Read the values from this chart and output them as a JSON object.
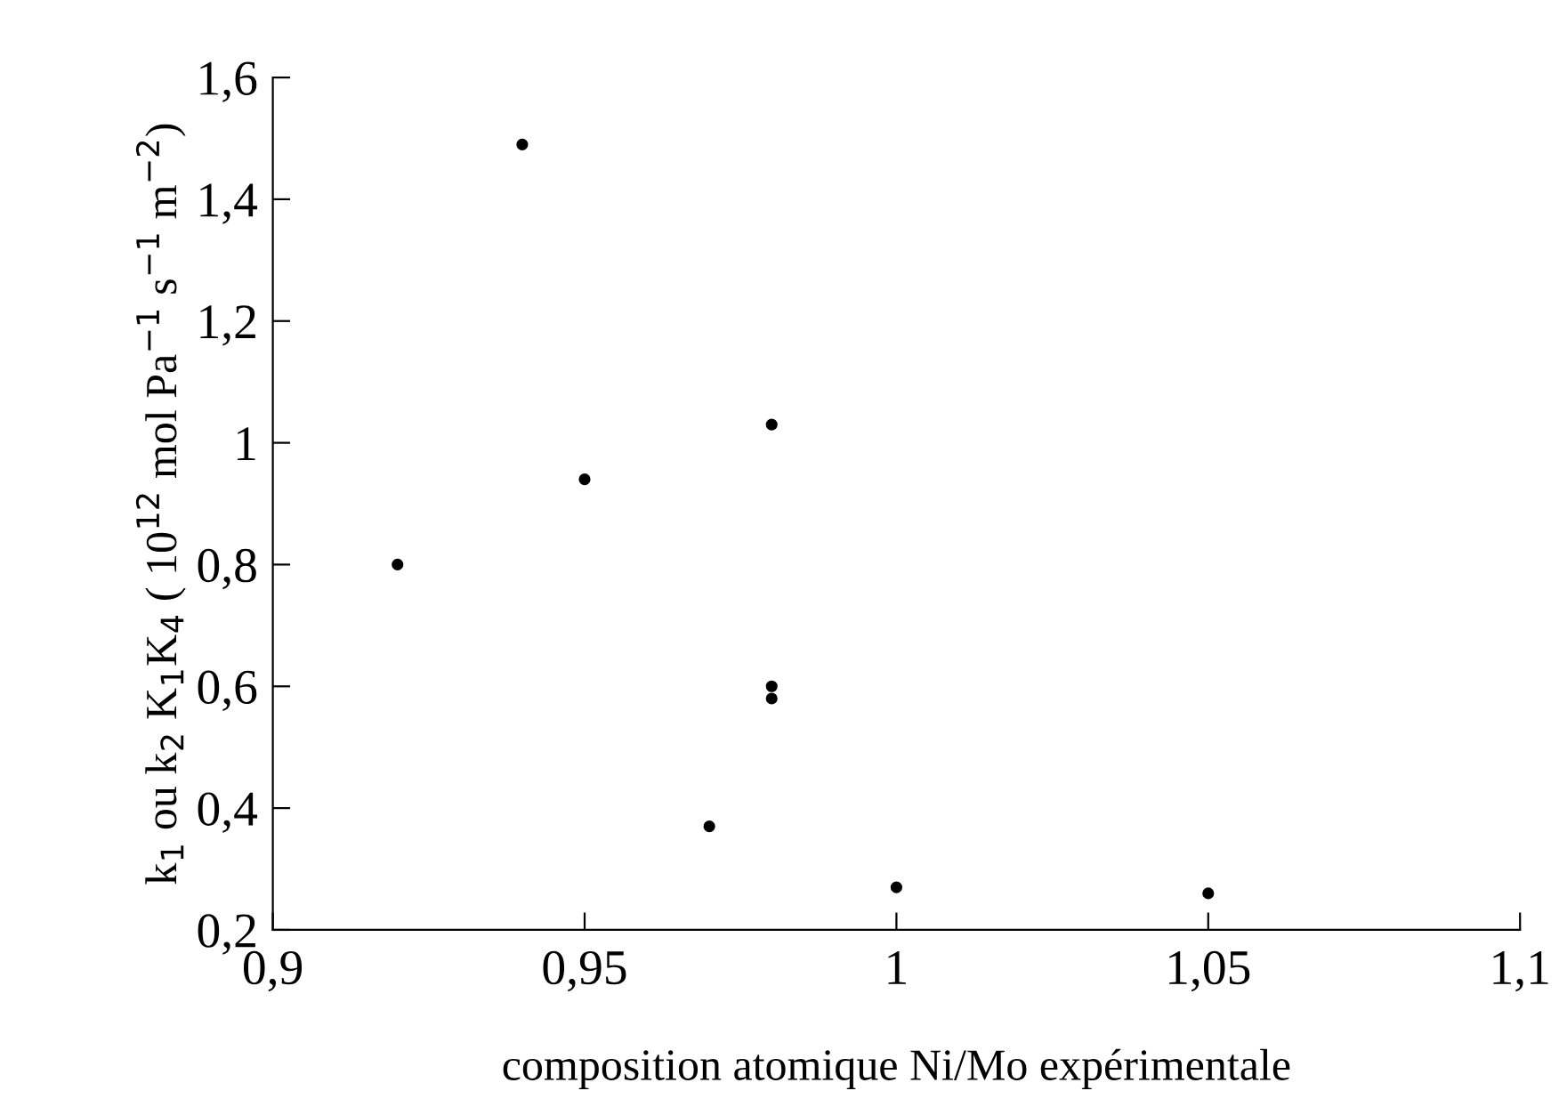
{
  "chart_data": {
    "type": "scatter",
    "xlabel": "composition atomique Ni/Mo expérimentale",
    "ylabel": "k$_{1}$ ou k$_{2}$ K$_{1}$K$_{4}$ ( 10$^{12}$ mol Pa$^{−1}$ s$^{−1}$ m$^{−2}$)",
    "x": [
      0.92,
      0.94,
      0.95,
      0.97,
      0.98,
      0.98,
      0.98,
      1.0,
      1.05
    ],
    "series": [
      {
        "color": "#000000",
        "values": [
          0.8,
          1.49,
          0.94,
          0.37,
          1.03,
          0.6,
          0.58,
          0.27,
          0.26
        ]
      }
    ],
    "marker": "circle",
    "grid": false,
    "legend": false,
    "xlim": [
      0.9,
      1.1
    ],
    "xticks": [
      {
        "value": 0.9,
        "label": "0,9"
      },
      {
        "value": 0.95,
        "label": "0,95"
      },
      {
        "value": 1,
        "label": "1"
      },
      {
        "value": 1.05,
        "label": "1,05"
      },
      {
        "value": 1.1,
        "label": "1,1"
      }
    ],
    "ylim": [
      0.2,
      1.6
    ],
    "yticks": [
      {
        "value": 0.2,
        "label": "0,2"
      },
      {
        "value": 0.4,
        "label": "0,4"
      },
      {
        "value": 0.6,
        "label": "0,6"
      },
      {
        "value": 0.8,
        "label": "0,8"
      },
      {
        "value": 1,
        "label": "1"
      },
      {
        "value": 1.2,
        "label": "1,2"
      },
      {
        "value": 1.4,
        "label": "1,4"
      },
      {
        "value": 1.6,
        "label": "1,6"
      }
    ]
  }
}
